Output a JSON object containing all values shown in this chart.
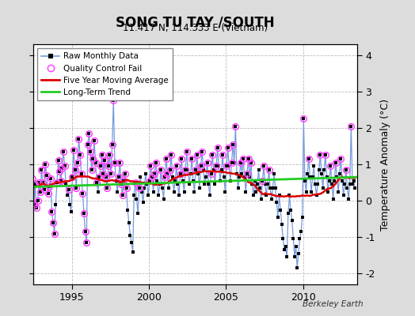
{
  "title": "SONG TU TAY /SOUTH",
  "subtitle": "11.417 N, 114.333 E (Vietnam)",
  "ylabel": "Temperature Anomaly (°C)",
  "xlim": [
    1992.5,
    2013.5
  ],
  "ylim": [
    -2.3,
    4.3
  ],
  "yticks": [
    -2,
    -1,
    0,
    1,
    2,
    3,
    4
  ],
  "xticks": [
    1995,
    2000,
    2005,
    2010
  ],
  "bg_color": "#dcdcdc",
  "plot_bg_color": "#ffffff",
  "grid_color": "#bbbbbb",
  "raw_line_color": "#7799dd",
  "qc_fail_color": "#ff44ff",
  "ma_color": "#dd0000",
  "trend_color": "#22cc22",
  "berkeley_earth_text": "Berkeley Earth",
  "legend_labels": [
    "Raw Monthly Data",
    "Quality Control Fail",
    "Five Year Moving Average",
    "Long-Term Trend"
  ],
  "time": [
    1992.042,
    1992.125,
    1992.208,
    1992.292,
    1992.375,
    1992.458,
    1992.542,
    1992.625,
    1992.708,
    1992.792,
    1992.875,
    1992.958,
    1993.042,
    1993.125,
    1993.208,
    1993.292,
    1993.375,
    1993.458,
    1993.542,
    1993.625,
    1993.708,
    1993.792,
    1993.875,
    1993.958,
    1994.042,
    1994.125,
    1994.208,
    1994.292,
    1994.375,
    1994.458,
    1994.542,
    1994.625,
    1994.708,
    1994.792,
    1994.875,
    1994.958,
    1995.042,
    1995.125,
    1995.208,
    1995.292,
    1995.375,
    1995.458,
    1995.542,
    1995.625,
    1995.708,
    1995.792,
    1995.875,
    1995.958,
    1996.042,
    1996.125,
    1996.208,
    1996.292,
    1996.375,
    1996.458,
    1996.542,
    1996.625,
    1996.708,
    1996.792,
    1996.875,
    1996.958,
    1997.042,
    1997.125,
    1997.208,
    1997.292,
    1997.375,
    1997.458,
    1997.542,
    1997.625,
    1997.708,
    1997.792,
    1997.875,
    1997.958,
    1998.042,
    1998.125,
    1998.208,
    1998.292,
    1998.375,
    1998.458,
    1998.542,
    1998.625,
    1998.708,
    1998.792,
    1998.875,
    1998.958,
    1999.042,
    1999.125,
    1999.208,
    1999.292,
    1999.375,
    1999.458,
    1999.542,
    1999.625,
    1999.708,
    1999.792,
    1999.875,
    1999.958,
    2000.042,
    2000.125,
    2000.208,
    2000.292,
    2000.375,
    2000.458,
    2000.542,
    2000.625,
    2000.708,
    2000.792,
    2000.875,
    2000.958,
    2001.042,
    2001.125,
    2001.208,
    2001.292,
    2001.375,
    2001.458,
    2001.542,
    2001.625,
    2001.708,
    2001.792,
    2001.875,
    2001.958,
    2002.042,
    2002.125,
    2002.208,
    2002.292,
    2002.375,
    2002.458,
    2002.542,
    2002.625,
    2002.708,
    2002.792,
    2002.875,
    2002.958,
    2003.042,
    2003.125,
    2003.208,
    2003.292,
    2003.375,
    2003.458,
    2003.542,
    2003.625,
    2003.708,
    2003.792,
    2003.875,
    2003.958,
    2004.042,
    2004.125,
    2004.208,
    2004.292,
    2004.375,
    2004.458,
    2004.542,
    2004.625,
    2004.708,
    2004.792,
    2004.875,
    2004.958,
    2005.042,
    2005.125,
    2005.208,
    2005.292,
    2005.375,
    2005.458,
    2005.542,
    2005.625,
    2005.708,
    2005.792,
    2005.875,
    2005.958,
    2006.042,
    2006.125,
    2006.208,
    2006.292,
    2006.375,
    2006.458,
    2006.542,
    2006.625,
    2006.708,
    2006.792,
    2006.875,
    2006.958,
    2007.042,
    2007.125,
    2007.208,
    2007.292,
    2007.375,
    2007.458,
    2007.542,
    2007.625,
    2007.708,
    2007.792,
    2007.875,
    2007.958,
    2008.042,
    2008.125,
    2008.208,
    2008.292,
    2008.375,
    2008.458,
    2008.542,
    2008.625,
    2008.708,
    2008.792,
    2008.875,
    2008.958,
    2009.042,
    2009.125,
    2009.208,
    2009.292,
    2009.375,
    2009.458,
    2009.542,
    2009.625,
    2009.708,
    2009.792,
    2009.875,
    2009.958,
    2010.042,
    2010.125,
    2010.208,
    2010.292,
    2010.375,
    2010.458,
    2010.542,
    2010.625,
    2010.708,
    2010.792,
    2010.875,
    2010.958,
    2011.042,
    2011.125,
    2011.208,
    2011.292,
    2011.375,
    2011.458,
    2011.542,
    2011.625,
    2011.708,
    2011.792,
    2011.875,
    2011.958,
    2012.042,
    2012.125,
    2012.208,
    2012.292,
    2012.375,
    2012.458,
    2012.542,
    2012.625,
    2012.708,
    2012.792,
    2012.875,
    2012.958,
    2013.042,
    2013.125,
    2013.208,
    2013.292,
    2013.375
  ],
  "anomaly": [
    0.75,
    0.3,
    0.55,
    0.15,
    -0.05,
    0.6,
    -0.1,
    0.45,
    -0.2,
    0.0,
    0.5,
    0.25,
    0.85,
    0.5,
    0.3,
    1.0,
    0.7,
    0.2,
    0.4,
    0.6,
    -0.3,
    -0.6,
    -0.9,
    -0.1,
    0.5,
    1.1,
    0.8,
    0.55,
    0.9,
    1.35,
    0.95,
    0.45,
    0.15,
    0.3,
    -0.1,
    -0.3,
    0.65,
    1.4,
    0.85,
    0.35,
    1.05,
    1.7,
    1.25,
    0.75,
    0.2,
    -0.35,
    -0.85,
    -1.15,
    1.55,
    1.85,
    1.35,
    0.85,
    1.15,
    1.65,
    1.05,
    0.5,
    0.25,
    0.65,
    0.95,
    1.25,
    0.75,
    1.1,
    0.65,
    0.35,
    0.95,
    1.25,
    0.75,
    1.55,
    2.75,
    1.05,
    0.55,
    0.25,
    0.65,
    1.05,
    0.45,
    0.15,
    0.55,
    0.75,
    0.35,
    -0.25,
    -0.6,
    -0.95,
    -1.15,
    -1.4,
    0.15,
    0.5,
    0.05,
    -0.35,
    0.35,
    0.65,
    0.25,
    -0.05,
    0.35,
    0.75,
    0.45,
    0.15,
    0.55,
    0.95,
    0.65,
    0.25,
    0.75,
    1.05,
    0.55,
    0.15,
    0.45,
    0.85,
    0.35,
    0.05,
    0.65,
    1.15,
    0.75,
    0.35,
    0.85,
    1.25,
    0.65,
    0.25,
    0.55,
    0.95,
    0.45,
    0.15,
    0.75,
    1.15,
    0.55,
    0.25,
    0.85,
    1.35,
    0.85,
    0.45,
    0.75,
    1.15,
    0.55,
    0.25,
    0.85,
    1.25,
    0.75,
    0.35,
    0.95,
    1.35,
    0.85,
    0.45,
    0.65,
    1.05,
    0.45,
    0.15,
    0.75,
    1.25,
    0.85,
    0.45,
    0.95,
    1.45,
    0.95,
    0.55,
    0.85,
    1.25,
    0.65,
    0.25,
    0.95,
    1.45,
    0.95,
    0.55,
    1.05,
    1.55,
    1.05,
    2.05,
    0.75,
    0.35,
    0.65,
    1.05,
    0.75,
    1.15,
    0.65,
    0.25,
    0.75,
    1.15,
    0.65,
    1.05,
    0.45,
    0.15,
    0.55,
    0.25,
    0.45,
    0.85,
    0.35,
    0.05,
    0.55,
    0.95,
    0.45,
    0.15,
    0.45,
    0.85,
    0.35,
    0.05,
    0.35,
    0.75,
    0.35,
    -0.05,
    -0.45,
    0.15,
    -0.25,
    -0.65,
    -1.05,
    -1.35,
    -1.25,
    -1.55,
    -0.35,
    0.15,
    -0.25,
    -0.55,
    -1.05,
    -1.55,
    -1.25,
    -1.85,
    -1.45,
    -1.05,
    -0.85,
    -0.45,
    2.25,
    0.55,
    0.25,
    0.75,
    1.15,
    0.65,
    0.25,
    0.65,
    0.95,
    0.45,
    0.15,
    0.45,
    0.85,
    1.25,
    0.75,
    0.35,
    0.85,
    1.25,
    0.65,
    0.25,
    0.55,
    0.95,
    0.45,
    0.05,
    0.55,
    1.05,
    0.65,
    0.25,
    0.75,
    1.15,
    0.55,
    0.15,
    0.45,
    0.85,
    0.35,
    0.05,
    0.45,
    2.05,
    0.45,
    0.55,
    0.35
  ],
  "qc_fail_mask": [
    1,
    1,
    1,
    1,
    1,
    1,
    1,
    1,
    1,
    1,
    1,
    1,
    1,
    1,
    1,
    1,
    1,
    1,
    1,
    1,
    1,
    1,
    1,
    0,
    1,
    1,
    1,
    1,
    1,
    1,
    1,
    0,
    0,
    1,
    0,
    0,
    1,
    1,
    1,
    1,
    1,
    1,
    1,
    1,
    1,
    1,
    1,
    1,
    1,
    1,
    1,
    1,
    1,
    1,
    1,
    1,
    0,
    1,
    1,
    1,
    1,
    1,
    1,
    1,
    1,
    1,
    1,
    1,
    1,
    1,
    0,
    0,
    1,
    1,
    1,
    1,
    1,
    1,
    1,
    0,
    0,
    0,
    0,
    0,
    0,
    1,
    0,
    0,
    1,
    0,
    0,
    0,
    0,
    0,
    0,
    0,
    1,
    1,
    1,
    0,
    1,
    1,
    0,
    0,
    0,
    1,
    0,
    0,
    1,
    1,
    1,
    0,
    1,
    1,
    0,
    0,
    0,
    1,
    0,
    0,
    1,
    1,
    0,
    0,
    1,
    1,
    0,
    0,
    0,
    1,
    0,
    0,
    1,
    1,
    0,
    0,
    1,
    1,
    0,
    0,
    0,
    1,
    0,
    0,
    1,
    1,
    0,
    0,
    1,
    1,
    0,
    0,
    0,
    1,
    0,
    0,
    1,
    1,
    0,
    0,
    1,
    1,
    0,
    1,
    0,
    0,
    0,
    1,
    0,
    1,
    0,
    0,
    1,
    1,
    0,
    1,
    0,
    0,
    0,
    0,
    0,
    0,
    0,
    0,
    1,
    1,
    0,
    0,
    0,
    1,
    0,
    0,
    0,
    0,
    0,
    0,
    0,
    0,
    0,
    0,
    0,
    0,
    0,
    0,
    0,
    0,
    0,
    0,
    0,
    0,
    0,
    0,
    0,
    0,
    0,
    0,
    1,
    0,
    0,
    0,
    1,
    0,
    0,
    0,
    0,
    0,
    0,
    0,
    0,
    1,
    0,
    0,
    0,
    1,
    0,
    0,
    0,
    1,
    0,
    0,
    0,
    1,
    0,
    0,
    0,
    1,
    0,
    0,
    0,
    1,
    0,
    0,
    0,
    1,
    0,
    0,
    0
  ],
  "trend_x": [
    1992.5,
    2013.5
  ],
  "trend_y": [
    0.38,
    0.65
  ]
}
